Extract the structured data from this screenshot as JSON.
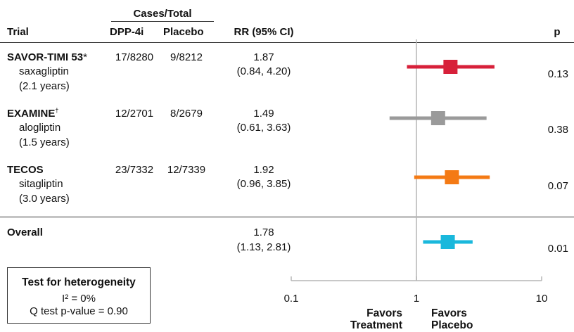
{
  "headers": {
    "cases_total": "Cases/Total",
    "trial": "Trial",
    "dpp4i": "DPP-4i",
    "placebo": "Placebo",
    "rr": "RR (95% CI)",
    "p": "p"
  },
  "trials": [
    {
      "name": "SAVOR-TIMI 53",
      "mark": "*",
      "drug": "saxagliptin",
      "duration": "(2.1 years)",
      "dpp4i": "17/8280",
      "placebo": "9/8212",
      "rr": "1.87",
      "ci": "(0.84, 4.20)",
      "p": "0.13"
    },
    {
      "name": "EXAMINE",
      "mark": "†",
      "drug": "alogliptin",
      "duration": "(1.5 years)",
      "dpp4i": "12/2701",
      "placebo": "8/2679",
      "rr": "1.49",
      "ci": "(0.61, 3.63)",
      "p": "0.38"
    },
    {
      "name": "TECOS",
      "mark": "",
      "drug": "sitagliptin",
      "duration": "(3.0 years)",
      "dpp4i": "23/7332",
      "placebo": "12/7339",
      "rr": "1.92",
      "ci": "(0.96, 3.85)",
      "p": "0.07"
    }
  ],
  "overall": {
    "name": "Overall",
    "rr": "1.78",
    "ci": "(1.13, 2.81)",
    "p": "0.01"
  },
  "heterogeneity": {
    "title": "Test for heterogeneity",
    "i2": "I² = 0%",
    "q": "Q test p-value = 0.90"
  },
  "favors_treatment": [
    "Favors",
    "Treatment"
  ],
  "favors_placebo": [
    "Favors",
    "Placebo"
  ],
  "chart_data": {
    "type": "forest",
    "scale": "log",
    "xlim": [
      0.1,
      10
    ],
    "ticks": [
      {
        "value": 0.1,
        "label": "0.1"
      },
      {
        "value": 1,
        "label": "1"
      },
      {
        "value": 10,
        "label": "10"
      }
    ],
    "reference_line": 1,
    "points": [
      {
        "label": "SAVOR-TIMI 53",
        "est": 1.87,
        "lo": 0.84,
        "hi": 4.2,
        "color": "#d7203a"
      },
      {
        "label": "EXAMINE",
        "est": 1.49,
        "lo": 0.61,
        "hi": 3.63,
        "color": "#9a9a9a"
      },
      {
        "label": "TECOS",
        "est": 1.92,
        "lo": 0.96,
        "hi": 3.85,
        "color": "#f47a14"
      },
      {
        "label": "Overall",
        "est": 1.78,
        "lo": 1.13,
        "hi": 2.81,
        "color": "#1ab8dc"
      }
    ]
  }
}
